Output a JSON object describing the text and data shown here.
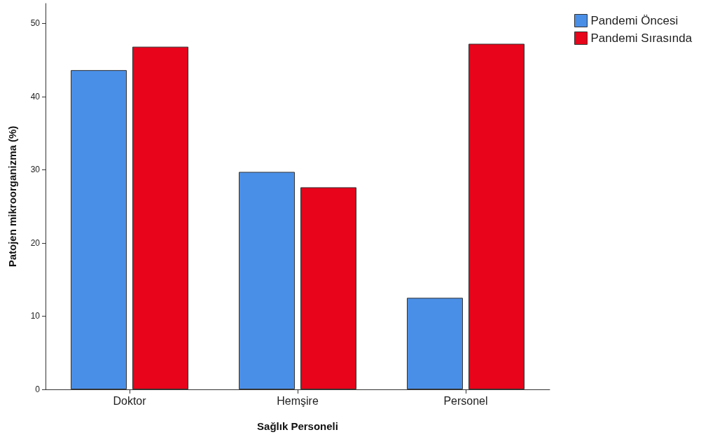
{
  "chart_data": {
    "type": "bar",
    "xlabel": "Sağlık Personeli",
    "ylabel": "Patojen mikroorganizma (%)",
    "categories": [
      "Doktor",
      "Hemşire",
      "Personel"
    ],
    "series": [
      {
        "name": "Pandemi Öncesi",
        "color": "#4a8fe7",
        "values": [
          43.6,
          29.7,
          12.5
        ]
      },
      {
        "name": "Pandemi Sırasında",
        "color": "#e8041a",
        "values": [
          46.8,
          27.6,
          47.2
        ]
      }
    ],
    "ylim": [
      0,
      52.7
    ],
    "yticks": [
      0,
      10,
      20,
      30,
      40,
      50
    ],
    "grid": false,
    "legend": "top right"
  }
}
